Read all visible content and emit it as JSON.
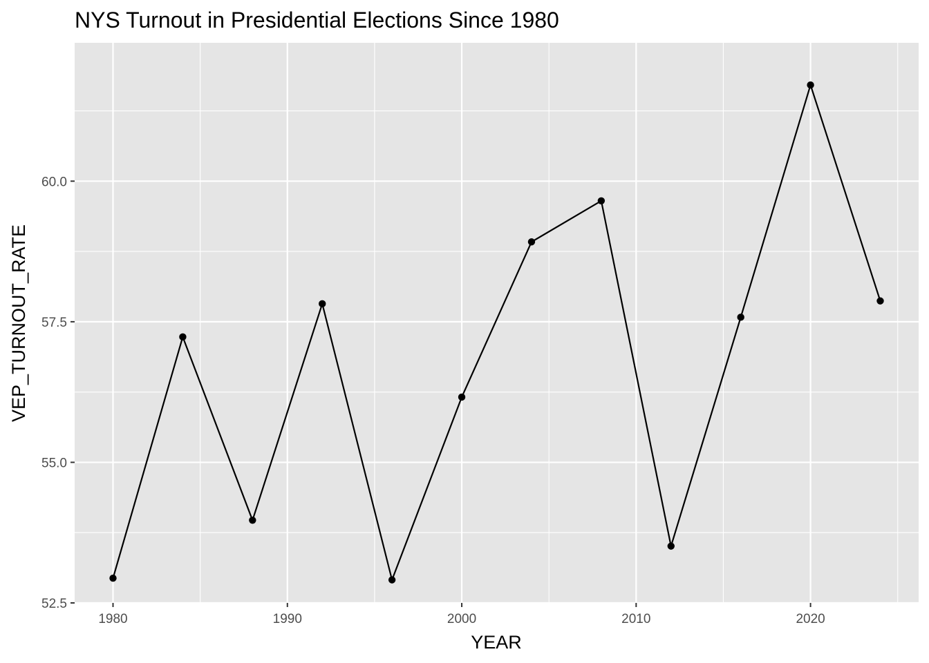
{
  "chart_data": {
    "type": "line",
    "title": "NYS Turnout in Presidential Elections Since 1980",
    "xlabel": "YEAR",
    "ylabel": "VEP_TURNOUT_RATE",
    "x": [
      1980,
      1984,
      1988,
      1992,
      1996,
      2000,
      2004,
      2008,
      2012,
      2016,
      2020,
      2024
    ],
    "series": [
      {
        "values": [
          52.94,
          57.23,
          53.97,
          57.82,
          52.91,
          56.16,
          58.92,
          59.65,
          53.51,
          57.58,
          61.71,
          57.87
        ]
      }
    ],
    "x_ticks": [
      1980,
      1990,
      2000,
      2010,
      2020
    ],
    "x_tick_labels": [
      "1980",
      "1990",
      "2000",
      "2010",
      "2020"
    ],
    "y_ticks": [
      52.5,
      55.0,
      57.5,
      60.0
    ],
    "y_tick_labels": [
      "52.5",
      "55.0",
      "57.5",
      "60.0"
    ],
    "xlim": [
      1977.8,
      2026.2
    ],
    "ylim": [
      52.5,
      62.46
    ],
    "grid": true,
    "panel_color": "#e5e5e5",
    "grid_color": "#ffffff",
    "line_color": "#000000",
    "point_color": "#000000",
    "legend": "none"
  }
}
